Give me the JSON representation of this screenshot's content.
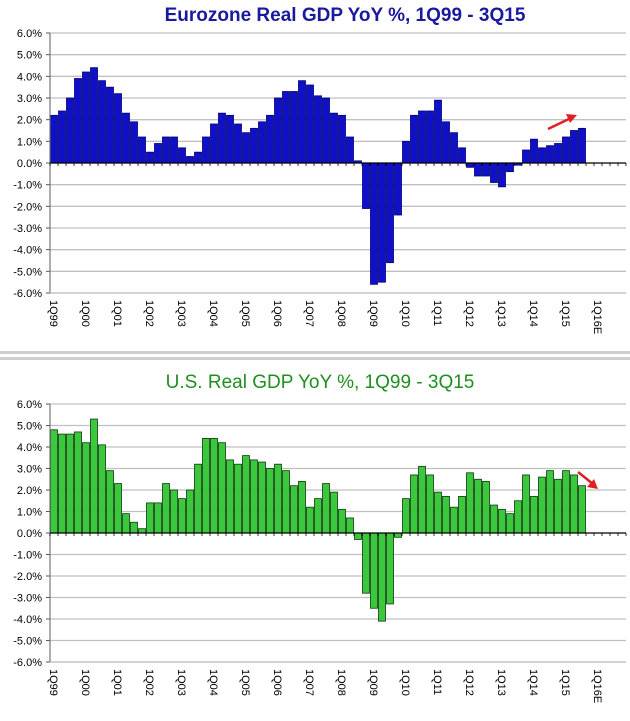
{
  "colors": {
    "eurozone_bar": "#1010c8",
    "eurozone_title": "#1a1a9c",
    "us_bar": "#3cc83c",
    "us_bar_edge": "#0a3a0a",
    "us_title": "#1f8f1f",
    "grid": "#c0c0c0",
    "arrow": "#e02020",
    "separator": "#cfcfcf"
  },
  "chart_data": [
    {
      "type": "bar",
      "title": "Eurozone Real GDP YoY %, 1Q99 - 3Q15",
      "xlabel": "",
      "ylabel": "",
      "ylim": [
        -6,
        6
      ],
      "grid": true,
      "yticks": [
        "6.0%",
        "5.0%",
        "4.0%",
        "3.0%",
        "2.0%",
        "1.0%",
        "0.0%",
        "-1.0%",
        "-2.0%",
        "-3.0%",
        "-4.0%",
        "-5.0%",
        "-6.0%"
      ],
      "xtick_labels": [
        "1Q99",
        "1Q00",
        "1Q01",
        "1Q02",
        "1Q03",
        "1Q04",
        "1Q05",
        "1Q06",
        "1Q07",
        "1Q08",
        "1Q09",
        "1Q10",
        "1Q11",
        "1Q12",
        "1Q13",
        "1Q14",
        "1Q15",
        "1Q16E"
      ],
      "quarters_total": 72,
      "annotation": "trend-arrow-up",
      "values": [
        2.2,
        2.4,
        3.0,
        3.9,
        4.2,
        4.4,
        3.8,
        3.5,
        3.2,
        2.3,
        1.9,
        1.2,
        0.5,
        0.9,
        1.2,
        1.2,
        0.7,
        0.3,
        0.5,
        1.2,
        1.8,
        2.3,
        2.2,
        1.8,
        1.4,
        1.6,
        1.9,
        2.2,
        3.0,
        3.3,
        3.3,
        3.8,
        3.6,
        3.1,
        3.0,
        2.3,
        2.2,
        1.2,
        0.1,
        -2.1,
        -5.6,
        -5.5,
        -4.6,
        -2.4,
        1.0,
        2.2,
        2.4,
        2.4,
        2.9,
        1.9,
        1.4,
        0.7,
        -0.2,
        -0.6,
        -0.6,
        -0.9,
        -1.1,
        -0.4,
        -0.1,
        0.6,
        1.1,
        0.7,
        0.8,
        0.9,
        1.2,
        1.5,
        1.6
      ]
    },
    {
      "type": "bar",
      "title": "U.S. Real GDP YoY %, 1Q99 - 3Q15",
      "xlabel": "",
      "ylabel": "",
      "ylim": [
        -6,
        6
      ],
      "grid": true,
      "yticks": [
        "6.0%",
        "5.0%",
        "4.0%",
        "3.0%",
        "2.0%",
        "1.0%",
        "0.0%",
        "-1.0%",
        "-2.0%",
        "-3.0%",
        "-4.0%",
        "-5.0%",
        "-6.0%"
      ],
      "xtick_labels": [
        "1Q99",
        "1Q00",
        "1Q01",
        "1Q02",
        "1Q03",
        "1Q04",
        "1Q05",
        "1Q06",
        "1Q07",
        "1Q08",
        "1Q09",
        "1Q10",
        "1Q11",
        "1Q12",
        "1Q13",
        "1Q14",
        "1Q15",
        "1Q16E"
      ],
      "quarters_total": 72,
      "annotation": "trend-arrow-down",
      "values": [
        4.8,
        4.6,
        4.6,
        4.7,
        4.2,
        5.3,
        4.1,
        2.9,
        2.3,
        0.9,
        0.5,
        0.2,
        1.4,
        1.4,
        2.3,
        2.0,
        1.6,
        2.0,
        3.2,
        4.4,
        4.4,
        4.2,
        3.4,
        3.2,
        3.6,
        3.4,
        3.3,
        3.0,
        3.2,
        2.9,
        2.2,
        2.4,
        1.2,
        1.6,
        2.3,
        1.9,
        1.1,
        0.7,
        -0.3,
        -2.8,
        -3.5,
        -4.1,
        -3.3,
        -0.2,
        1.6,
        2.7,
        3.1,
        2.7,
        1.9,
        1.7,
        1.2,
        1.7,
        2.8,
        2.5,
        2.4,
        1.3,
        1.1,
        0.9,
        1.5,
        2.7,
        1.7,
        2.6,
        2.9,
        2.5,
        2.9,
        2.7,
        2.2
      ]
    }
  ]
}
